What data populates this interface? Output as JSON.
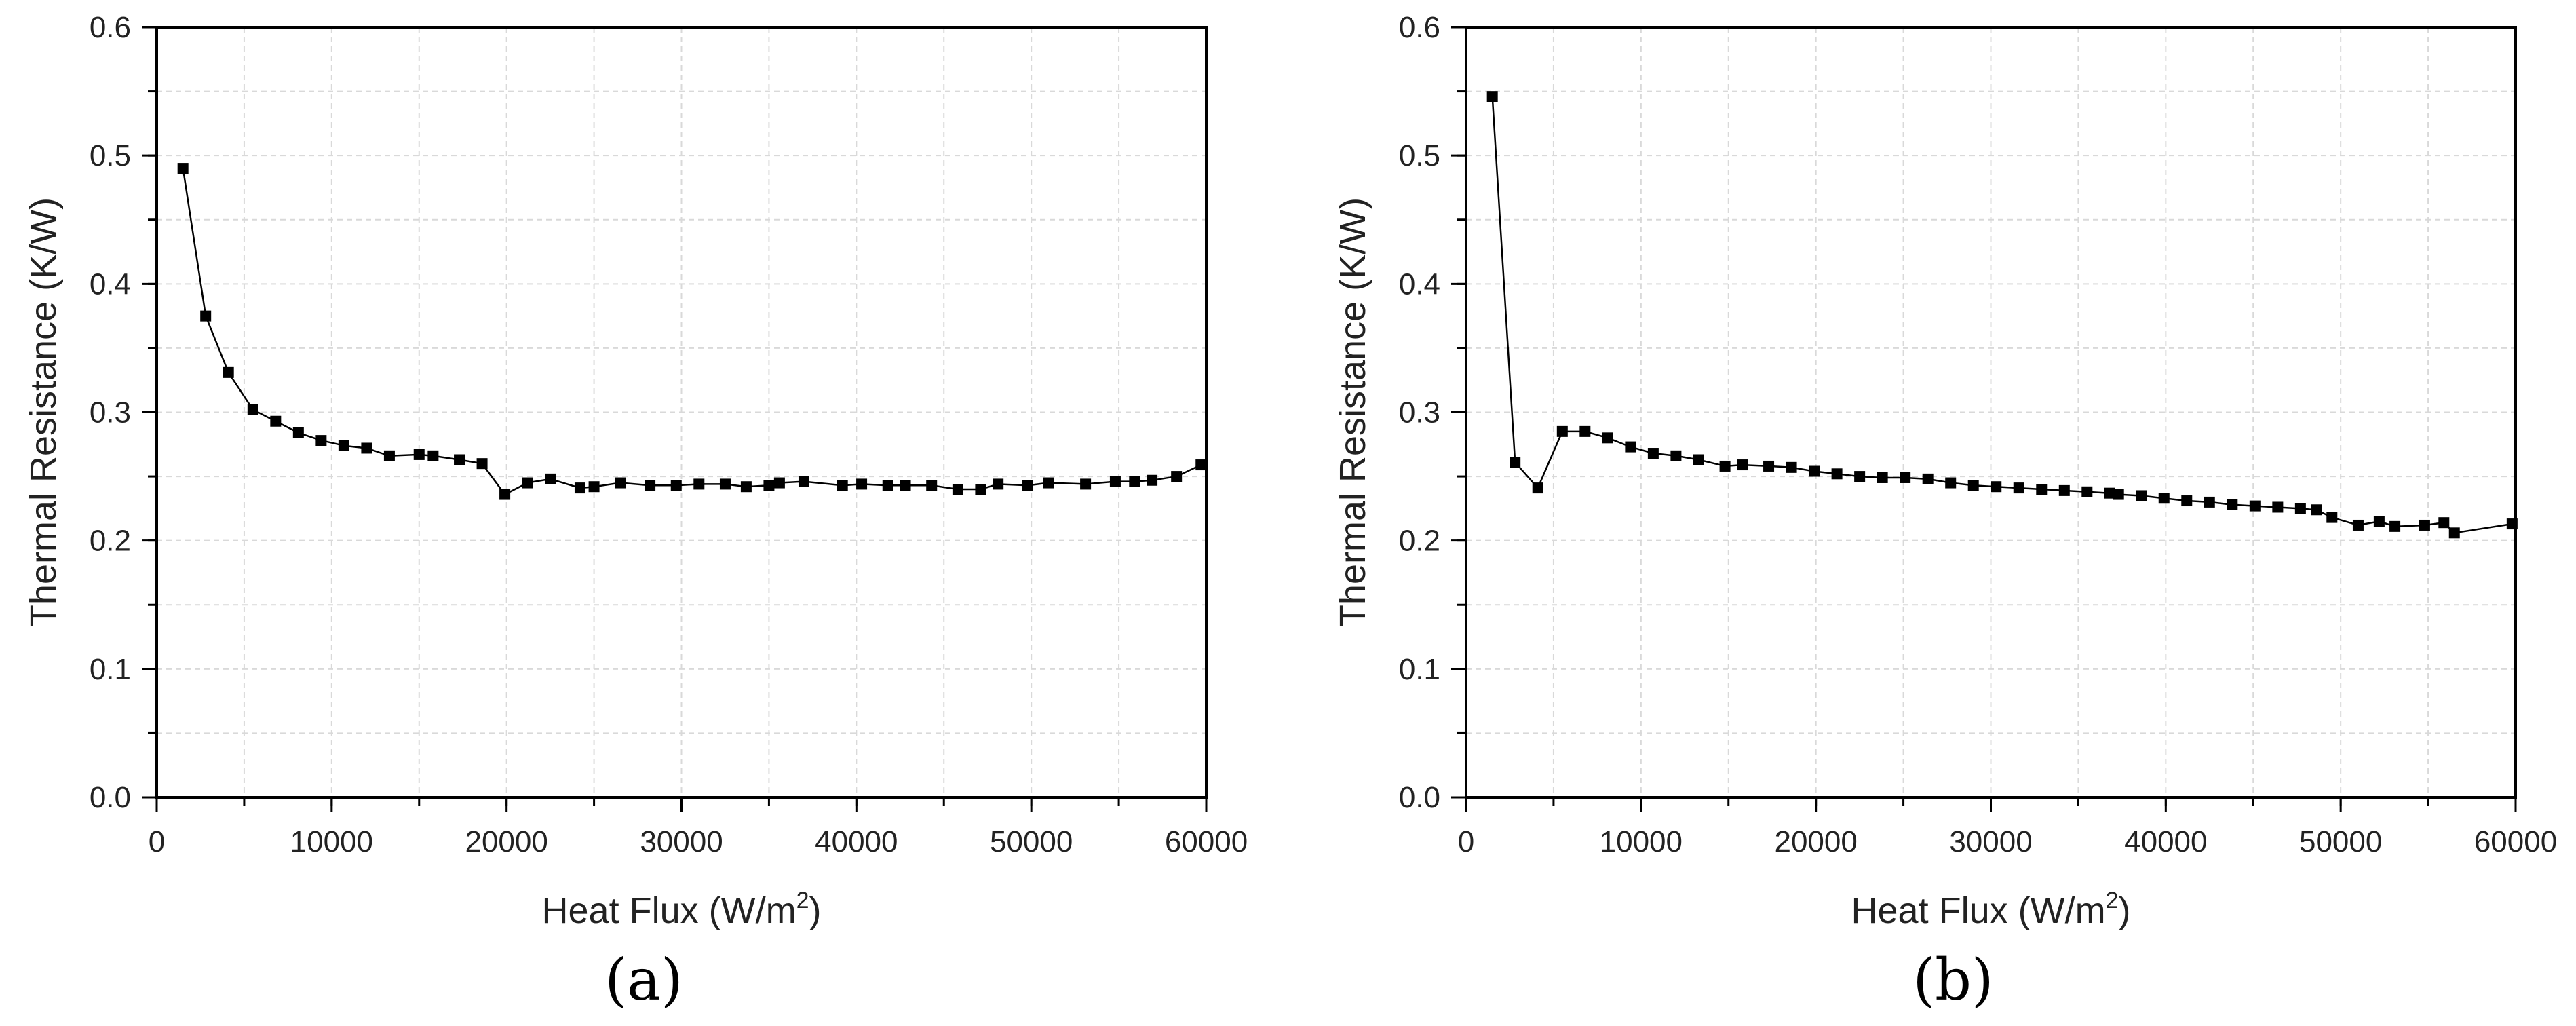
{
  "chart_data": [
    {
      "type": "line",
      "panel_label": "(a)",
      "title": "",
      "xlabel": "Heat Flux (W/m",
      "xlabel_sup": "2",
      "xlabel_end": ")",
      "ylabel": "Thermal Resistance (K/W)",
      "xlim": [
        0,
        60000
      ],
      "ylim": [
        0,
        0.6
      ],
      "grid": true,
      "xticks": [
        0,
        10000,
        20000,
        30000,
        40000,
        50000,
        60000
      ],
      "xtick_labels": [
        "0",
        "10000",
        "20000",
        "30000",
        "40000",
        "50000",
        "60000"
      ],
      "yticks": [
        0,
        0.1,
        0.2,
        0.3,
        0.4,
        0.5,
        0.6
      ],
      "ytick_labels": [
        "0.0",
        "0.1",
        "0.2",
        "0.3",
        "0.4",
        "0.5",
        "0.6"
      ],
      "series": [
        {
          "name": "Thermal Resistance",
          "color": "#000000",
          "x": [
            1500,
            2800,
            4100,
            5500,
            6800,
            8100,
            9400,
            10700,
            12000,
            13300,
            15000,
            15800,
            17300,
            18600,
            19900,
            21200,
            22500,
            24200,
            25000,
            26500,
            28200,
            29700,
            31000,
            32500,
            33700,
            35000,
            35600,
            37000,
            39200,
            40300,
            41800,
            42800,
            44300,
            45800,
            47100,
            48100,
            49800,
            51000,
            53100,
            54800,
            55900,
            56900,
            58300,
            59700
          ],
          "y": [
            0.49,
            0.375,
            0.331,
            0.302,
            0.293,
            0.284,
            0.278,
            0.274,
            0.272,
            0.266,
            0.267,
            0.266,
            0.263,
            0.26,
            0.236,
            0.245,
            0.248,
            0.241,
            0.242,
            0.245,
            0.243,
            0.243,
            0.244,
            0.244,
            0.242,
            0.243,
            0.245,
            0.246,
            0.243,
            0.244,
            0.243,
            0.243,
            0.243,
            0.24,
            0.24,
            0.244,
            0.243,
            0.245,
            0.244,
            0.246,
            0.246,
            0.247,
            0.25,
            0.259
          ]
        }
      ]
    },
    {
      "type": "line",
      "panel_label": "(b)",
      "title": "",
      "xlabel": "Heat Flux (W/m",
      "xlabel_sup": "2",
      "xlabel_end": ")",
      "ylabel": "Thermal Resistance (K/W)",
      "xlim": [
        0,
        60000
      ],
      "ylim": [
        0,
        0.6
      ],
      "grid": true,
      "xticks": [
        0,
        10000,
        20000,
        30000,
        40000,
        50000,
        60000
      ],
      "xtick_labels": [
        "0",
        "10000",
        "20000",
        "30000",
        "40000",
        "50000",
        "60000"
      ],
      "yticks": [
        0,
        0.1,
        0.2,
        0.3,
        0.4,
        0.5,
        0.6
      ],
      "ytick_labels": [
        "0.0",
        "0.1",
        "0.2",
        "0.3",
        "0.4",
        "0.5",
        "0.6"
      ],
      "series": [
        {
          "name": "Thermal Resistance",
          "color": "#000000",
          "x": [
            1500,
            2800,
            4100,
            5500,
            6800,
            8100,
            9400,
            10700,
            12000,
            13300,
            14800,
            15800,
            17300,
            18600,
            19900,
            21200,
            22500,
            23800,
            25100,
            26400,
            27700,
            29000,
            30300,
            31600,
            32900,
            34200,
            35500,
            36800,
            37300,
            38600,
            39900,
            41200,
            42500,
            43800,
            45100,
            46400,
            47700,
            48600,
            49500,
            51000,
            52200,
            53100,
            54800,
            55900,
            56500,
            59800
          ],
          "y": [
            0.546,
            0.261,
            0.241,
            0.285,
            0.285,
            0.28,
            0.273,
            0.268,
            0.266,
            0.263,
            0.258,
            0.259,
            0.258,
            0.257,
            0.254,
            0.252,
            0.25,
            0.249,
            0.249,
            0.248,
            0.245,
            0.243,
            0.242,
            0.241,
            0.24,
            0.239,
            0.238,
            0.237,
            0.236,
            0.235,
            0.233,
            0.231,
            0.23,
            0.228,
            0.227,
            0.226,
            0.225,
            0.224,
            0.218,
            0.212,
            0.215,
            0.211,
            0.212,
            0.214,
            0.206,
            0.213
          ]
        }
      ]
    }
  ]
}
